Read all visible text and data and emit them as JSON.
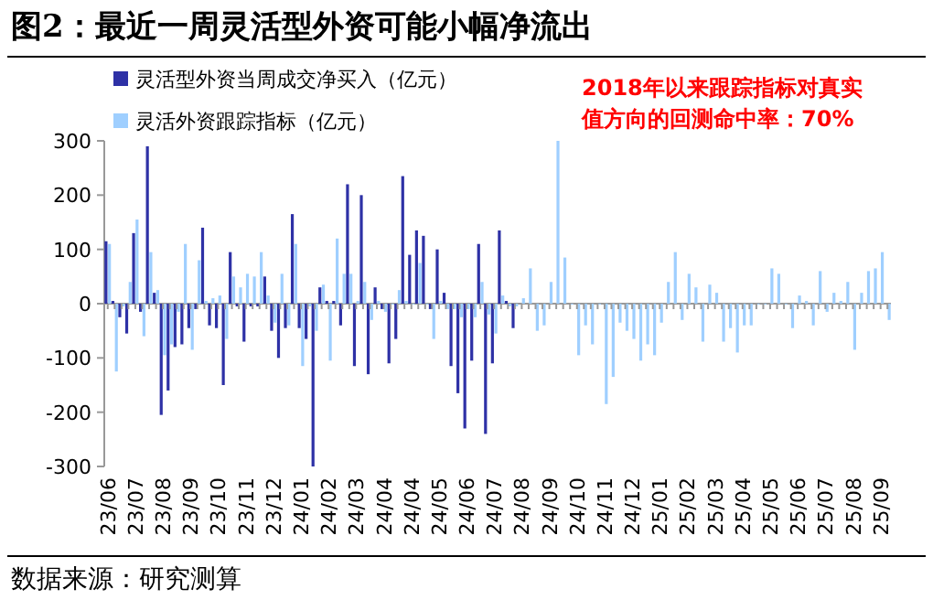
{
  "chart_data": {
    "type": "bar",
    "title": "图2：最近一周灵活型外资可能小幅净流出",
    "categories": [
      "23/06",
      null,
      null,
      null,
      "23/07",
      null,
      null,
      null,
      "23/08",
      null,
      null,
      null,
      "23/09",
      null,
      null,
      null,
      "23/10",
      null,
      null,
      null,
      "23/11",
      null,
      null,
      null,
      "23/12",
      null,
      null,
      null,
      "24/01",
      null,
      null,
      null,
      "24/02",
      null,
      null,
      null,
      "24/03",
      null,
      null,
      null,
      "24/04",
      null,
      null,
      null,
      "24/04",
      null,
      null,
      null,
      "24/05",
      null,
      null,
      null,
      "24/06",
      null,
      null,
      null,
      "24/07",
      null,
      null,
      null,
      "24/08",
      null,
      null,
      null,
      "24/09",
      null,
      null,
      null,
      "24/10",
      null,
      null,
      null,
      "24/11",
      null,
      null,
      null,
      "24/12",
      null,
      null,
      null,
      "25/01",
      null,
      null,
      null,
      "25/02",
      null,
      null,
      null,
      "25/03",
      null,
      null,
      null,
      "25/04",
      null,
      null,
      null,
      "25/05",
      null,
      null,
      null,
      "25/06",
      null,
      null,
      null,
      "25/07",
      null,
      null,
      null,
      "25/08",
      null,
      null,
      null,
      "25/09",
      null
    ],
    "series": [
      {
        "name": "灵活型外资当周成交净买入（亿元）",
        "color": "#2e31a6",
        "values": [
          115,
          5,
          -25,
          -55,
          130,
          -15,
          290,
          20,
          -205,
          -160,
          -80,
          -75,
          -45,
          -10,
          140,
          -40,
          -45,
          -150,
          95,
          -5,
          -70,
          -5,
          -5,
          50,
          -50,
          -100,
          -45,
          165,
          -45,
          -65,
          -300,
          30,
          5,
          5,
          -40,
          220,
          -115,
          200,
          -130,
          30,
          -10,
          -110,
          -65,
          235,
          90,
          135,
          125,
          -10,
          100,
          20,
          -115,
          -165,
          -230,
          -105,
          110,
          -240,
          -110,
          135,
          5,
          -45,
          null,
          null,
          null,
          null,
          null,
          null,
          null,
          null,
          null,
          null,
          null,
          null,
          null,
          null,
          null,
          null,
          null,
          null,
          null,
          null,
          null,
          null,
          null,
          null,
          null,
          null,
          null,
          null,
          null,
          null,
          null,
          null,
          null,
          null,
          null,
          null,
          null,
          null,
          null,
          null,
          null,
          null,
          null,
          null,
          null,
          null,
          null,
          null,
          null,
          null,
          null,
          null,
          null,
          null
        ]
      },
      {
        "name": "灵活外资跟踪指标（亿元）",
        "color": "#9fcfff",
        "values": [
          110,
          -125,
          -5,
          40,
          155,
          -60,
          95,
          25,
          -95,
          -75,
          -15,
          110,
          -85,
          80,
          5,
          10,
          15,
          -65,
          50,
          30,
          55,
          50,
          95,
          15,
          -35,
          55,
          -40,
          110,
          -115,
          -5,
          -50,
          35,
          -105,
          120,
          55,
          55,
          5,
          40,
          -30,
          5,
          -15,
          0,
          25,
          5,
          0,
          75,
          0,
          -65,
          5,
          -10,
          -10,
          -25,
          -10,
          -25,
          40,
          -20,
          -55,
          15,
          -5,
          -5,
          10,
          65,
          -50,
          -40,
          40,
          300,
          85,
          0,
          -95,
          -40,
          -75,
          0,
          -185,
          -135,
          -35,
          -50,
          -65,
          -105,
          -75,
          -95,
          -35,
          40,
          95,
          -30,
          55,
          30,
          -70,
          35,
          20,
          -70,
          -45,
          -90,
          -40,
          -40,
          0,
          0,
          65,
          55,
          0,
          -45,
          15,
          5,
          -40,
          60,
          -15,
          20,
          5,
          40,
          -85,
          20,
          60,
          65,
          95,
          -30
        ]
      }
    ],
    "ylim": [
      -300,
      300
    ],
    "yticks": [
      -300,
      -200,
      -100,
      0,
      100,
      200,
      300
    ],
    "legend": "top left",
    "annotations": [
      "2018年以来跟踪指标对真实值方向的回测命中率：70%",
      "数据来源：研究测算"
    ]
  }
}
